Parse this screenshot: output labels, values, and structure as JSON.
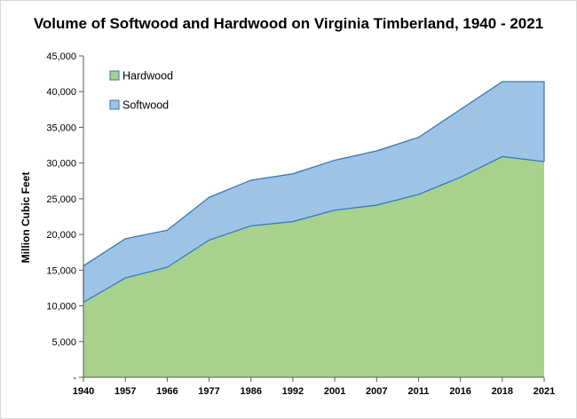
{
  "colors": {
    "hardwood_fill": "#a9d18e",
    "softwood_fill": "#9dc3e6",
    "edge": "#2e75b6",
    "axis": "#595959"
  },
  "chart_data": {
    "type": "area",
    "stacked": true,
    "title": "Volume of Softwood and Hardwood on Virginia Timberland, 1940 - 2021",
    "xlabel": "",
    "ylabel": "Million Cubic Feet",
    "categories": [
      "1940",
      "1957",
      "1966",
      "1977",
      "1986",
      "1992",
      "2001",
      "2007",
      "2011",
      "2016",
      "2018",
      "2021"
    ],
    "ylim": [
      0,
      45000
    ],
    "yticks": [
      0,
      5000,
      10000,
      15000,
      20000,
      25000,
      30000,
      35000,
      40000,
      45000
    ],
    "ytick_labels": [
      "-",
      "5,000",
      "10,000",
      "15,000",
      "20,000",
      "25,000",
      "30,000",
      "35,000",
      "40,000",
      "45,000"
    ],
    "grid": false,
    "legend_position": "top-left",
    "series": [
      {
        "name": "Hardwood",
        "values": [
          10500,
          13900,
          15400,
          19200,
          21200,
          21800,
          23400,
          24100,
          25600,
          28000,
          30900,
          30200
        ]
      },
      {
        "name": "Softwood",
        "values": [
          5100,
          5500,
          5200,
          6000,
          6400,
          6700,
          7000,
          7600,
          8000,
          9500,
          10500,
          11200
        ]
      }
    ]
  }
}
